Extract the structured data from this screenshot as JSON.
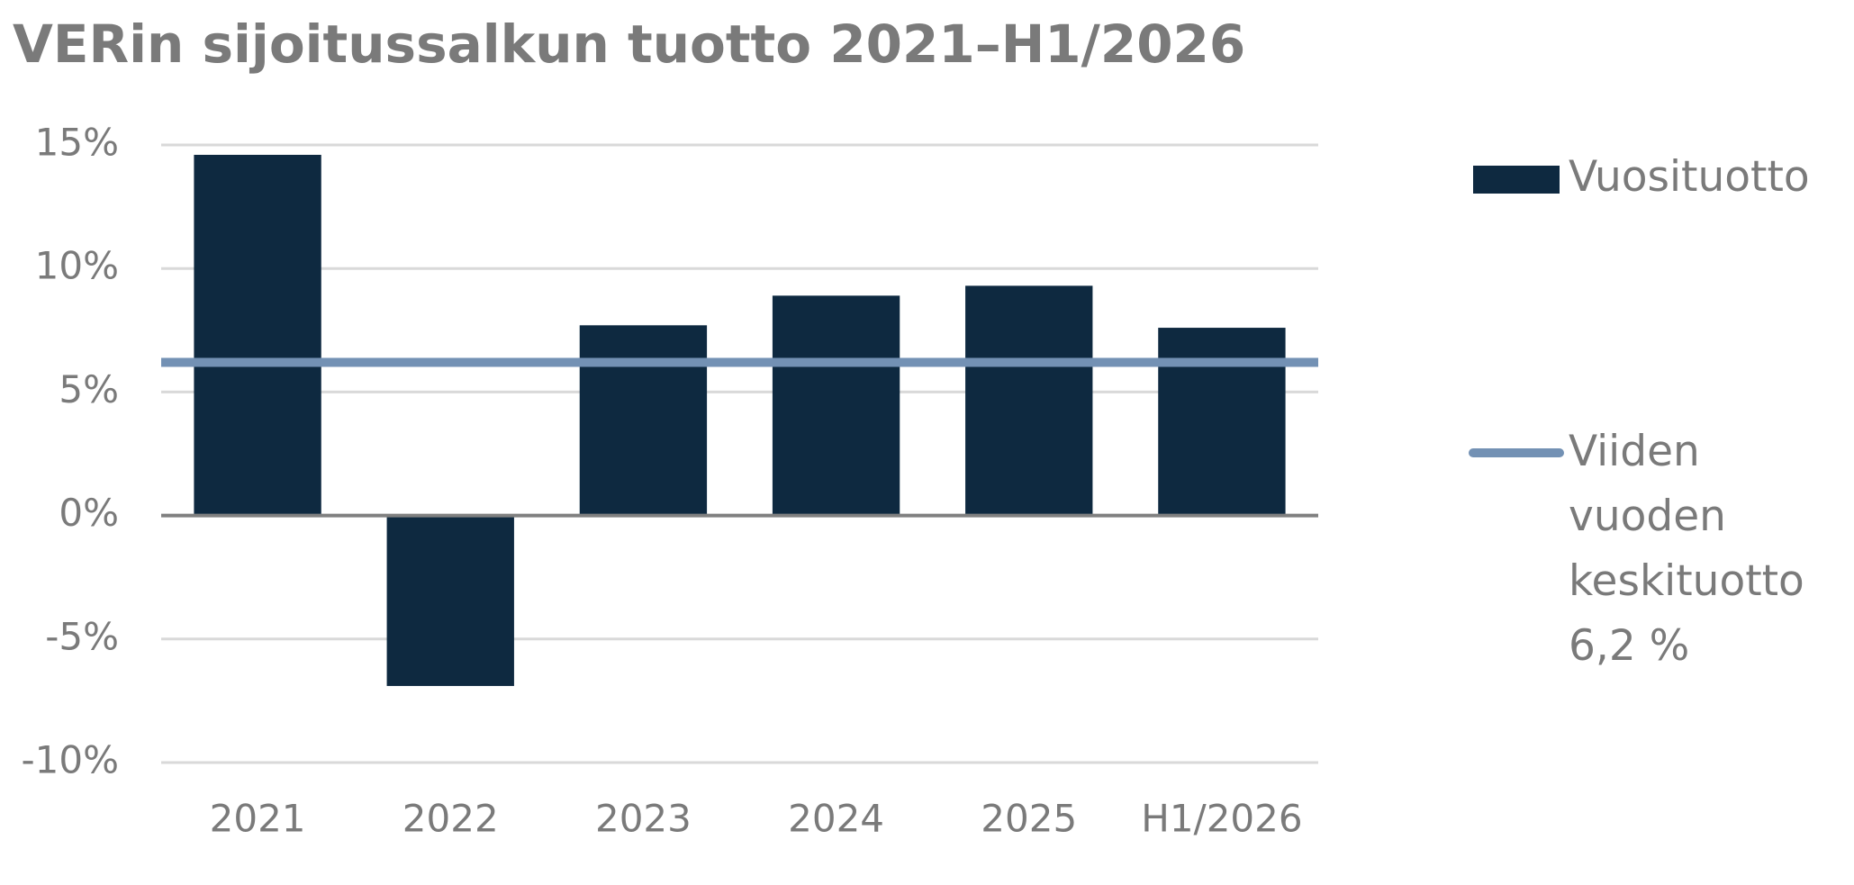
{
  "chart_data": {
    "type": "bar",
    "title": "VERin sijoitussalkun tuotto 2021–H1/2026",
    "categories": [
      "2021",
      "2022",
      "2023",
      "2024",
      "2025",
      "H1/2026"
    ],
    "series": [
      {
        "name": "Vuosituotto",
        "color": "#0e2940",
        "values": [
          14.6,
          -6.9,
          7.7,
          8.9,
          9.3,
          7.6
        ]
      }
    ],
    "average": {
      "name": "Viiden vuoden keskituotto 6,2 %",
      "color": "#7391b4",
      "value": 6.2
    },
    "ylim": [
      -10,
      15
    ],
    "yticks": [
      {
        "value": -10,
        "label": "-10%"
      },
      {
        "value": -5,
        "label": "-5%"
      },
      {
        "value": 0,
        "label": "0%"
      },
      {
        "value": 5,
        "label": "5%"
      },
      {
        "value": 10,
        "label": "10%"
      },
      {
        "value": 15,
        "label": "15%"
      }
    ],
    "grid": true,
    "legend": "right"
  }
}
